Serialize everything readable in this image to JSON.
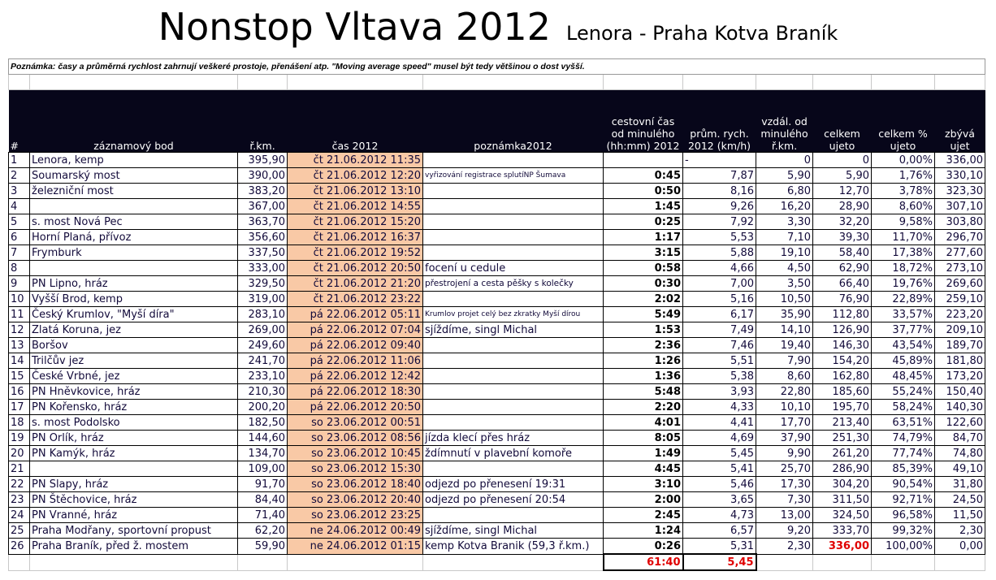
{
  "title": "Nonstop Vltava 2012",
  "subtitle": "Lenora - Praha Kotva Braník",
  "note": "Poznámka: časy a průměrná rychlost zahrnují veškeré prostoje, přenášení atp. \"Moving average speed\" musel být tedy většinou o dost vyšší.",
  "headers": [
    "#",
    "záznamový bod",
    "ř.km.",
    "čas 2012",
    "poznámka2012",
    "cestovní čas od minulého (hh:mm) 2012",
    "prům. rych. 2012 (km/h)",
    "vzdál. od minulého ř.km.",
    "celkem ujeto",
    "celkem % ujeto",
    "zbývá ujet"
  ],
  "rows": [
    [
      "1",
      "Lenora, kemp",
      "395,90",
      "čt 21.06.2012 11:35",
      "",
      "",
      "-",
      "0",
      "0",
      "0,00%",
      "336,00"
    ],
    [
      "2",
      "Soumarský most",
      "390,00",
      "čt 21.06.2012 12:20",
      "vyřizování registrace splutíNP Šumava",
      "0:45",
      "7,87",
      "5,90",
      "5,90",
      "1,76%",
      "330,10"
    ],
    [
      "3",
      "železniční most",
      "383,20",
      "čt 21.06.2012 13:10",
      "",
      "0:50",
      "8,16",
      "6,80",
      "12,70",
      "3,78%",
      "323,30"
    ],
    [
      "4",
      "",
      "367,00",
      "čt 21.06.2012 14:55",
      "",
      "1:45",
      "9,26",
      "16,20",
      "28,90",
      "8,60%",
      "307,10"
    ],
    [
      "5",
      "s. most Nová Pec",
      "363,70",
      "čt 21.06.2012 15:20",
      "",
      "0:25",
      "7,92",
      "3,30",
      "32,20",
      "9,58%",
      "303,80"
    ],
    [
      "6",
      "Horní Planá, přívoz",
      "356,60",
      "čt 21.06.2012 16:37",
      "",
      "1:17",
      "5,53",
      "7,10",
      "39,30",
      "11,70%",
      "296,70"
    ],
    [
      "7",
      "Frymburk",
      "337,50",
      "čt 21.06.2012 19:52",
      "",
      "3:15",
      "5,88",
      "19,10",
      "58,40",
      "17,38%",
      "277,60"
    ],
    [
      "8",
      "",
      "333,00",
      "čt 21.06.2012 20:50",
      "focení u cedule",
      "0:58",
      "4,66",
      "4,50",
      "62,90",
      "18,72%",
      "273,10"
    ],
    [
      "9",
      "PN Lipno, hráz",
      "329,50",
      "čt 21.06.2012 21:20",
      "přestrojení a cesta pěšky s kolečky",
      "0:30",
      "7,00",
      "3,50",
      "66,40",
      "19,76%",
      "269,60"
    ],
    [
      "10",
      "Vyšší Brod, kemp",
      "319,00",
      "čt 21.06.2012 23:22",
      "",
      "2:02",
      "5,16",
      "10,50",
      "76,90",
      "22,89%",
      "259,10"
    ],
    [
      "11",
      "Český Krumlov, \"Myší díra\"",
      "283,10",
      "pá 22.06.2012 05:11",
      "Krumlov projet celý bez zkratky Myší dírou",
      "5:49",
      "6,17",
      "35,90",
      "112,80",
      "33,57%",
      "223,20"
    ],
    [
      "12",
      "Zlatá Koruna, jez",
      "269,00",
      "pá 22.06.2012 07:04",
      "sjíždíme, singl Michal",
      "1:53",
      "7,49",
      "14,10",
      "126,90",
      "37,77%",
      "209,10"
    ],
    [
      "13",
      "Boršov",
      "249,60",
      "pá 22.06.2012 09:40",
      "",
      "2:36",
      "7,46",
      "19,40",
      "146,30",
      "43,54%",
      "189,70"
    ],
    [
      "14",
      "Trilčův jez",
      "241,70",
      "pá 22.06.2012 11:06",
      "",
      "1:26",
      "5,51",
      "7,90",
      "154,20",
      "45,89%",
      "181,80"
    ],
    [
      "15",
      "České Vrbné, jez",
      "233,10",
      "pá 22.06.2012 12:42",
      "",
      "1:36",
      "5,38",
      "8,60",
      "162,80",
      "48,45%",
      "173,20"
    ],
    [
      "16",
      "PN Hněvkovice, hráz",
      "210,30",
      "pá 22.06.2012 18:30",
      "",
      "5:48",
      "3,93",
      "22,80",
      "185,60",
      "55,24%",
      "150,40"
    ],
    [
      "17",
      "PN Kořensko, hráz",
      "200,20",
      "pá 22.06.2012 20:50",
      "",
      "2:20",
      "4,33",
      "10,10",
      "195,70",
      "58,24%",
      "140,30"
    ],
    [
      "18",
      "s. most Podolsko",
      "182,50",
      "so 23.06.2012 00:51",
      "",
      "4:01",
      "4,41",
      "17,70",
      "213,40",
      "63,51%",
      "122,60"
    ],
    [
      "19",
      "PN Orlík, hráz",
      "144,60",
      "so 23.06.2012 08:56",
      "jízda klecí přes hráz",
      "8:05",
      "4,69",
      "37,90",
      "251,30",
      "74,79%",
      "84,70"
    ],
    [
      "20",
      "PN Kamýk, hráz",
      "134,70",
      "so 23.06.2012 10:45",
      "ždímnutí v plavební komoře",
      "1:49",
      "5,45",
      "9,90",
      "261,20",
      "77,74%",
      "74,80"
    ],
    [
      "21",
      "",
      "109,00",
      "so 23.06.2012 15:30",
      "",
      "4:45",
      "5,41",
      "25,70",
      "286,90",
      "85,39%",
      "49,10"
    ],
    [
      "22",
      "PN Slapy, hráz",
      "91,70",
      "so 23.06.2012 18:40",
      "odjezd po přenesení 19:31",
      "3:10",
      "5,46",
      "17,30",
      "304,20",
      "90,54%",
      "31,80"
    ],
    [
      "23",
      "PN Štěchovice, hráz",
      "84,40",
      "so 23.06.2012 20:40",
      "odjezd po přenesení 20:54",
      "2:00",
      "3,65",
      "7,30",
      "311,50",
      "92,71%",
      "24,50"
    ],
    [
      "24",
      "PN Vranné, hráz",
      "71,40",
      "so 23.06.2012 23:25",
      "",
      "2:45",
      "4,73",
      "13,00",
      "324,50",
      "96,58%",
      "11,50"
    ],
    [
      "25",
      "Praha Modřany, sportovní propust",
      "62,20",
      "ne 24.06.2012 00:49",
      "sjíždíme, singl Michal",
      "1:24",
      "6,57",
      "9,20",
      "333,70",
      "99,32%",
      "2,30"
    ],
    [
      "26",
      "Praha Braník, před ž. mostem",
      "59,90",
      "ne 24.06.2012 01:15",
      "kemp Kotva Branik (59,3 ř.km.)",
      "0:26",
      "5,31",
      "2,30",
      "336,00",
      "100,00%",
      "0,00"
    ]
  ],
  "totals": {
    "travel_time": "61:40",
    "avg_speed": "5,45"
  },
  "colors": {
    "time_cell": "#f9c9a6",
    "header_bg": "#07061a",
    "highlight": "#e00000"
  }
}
